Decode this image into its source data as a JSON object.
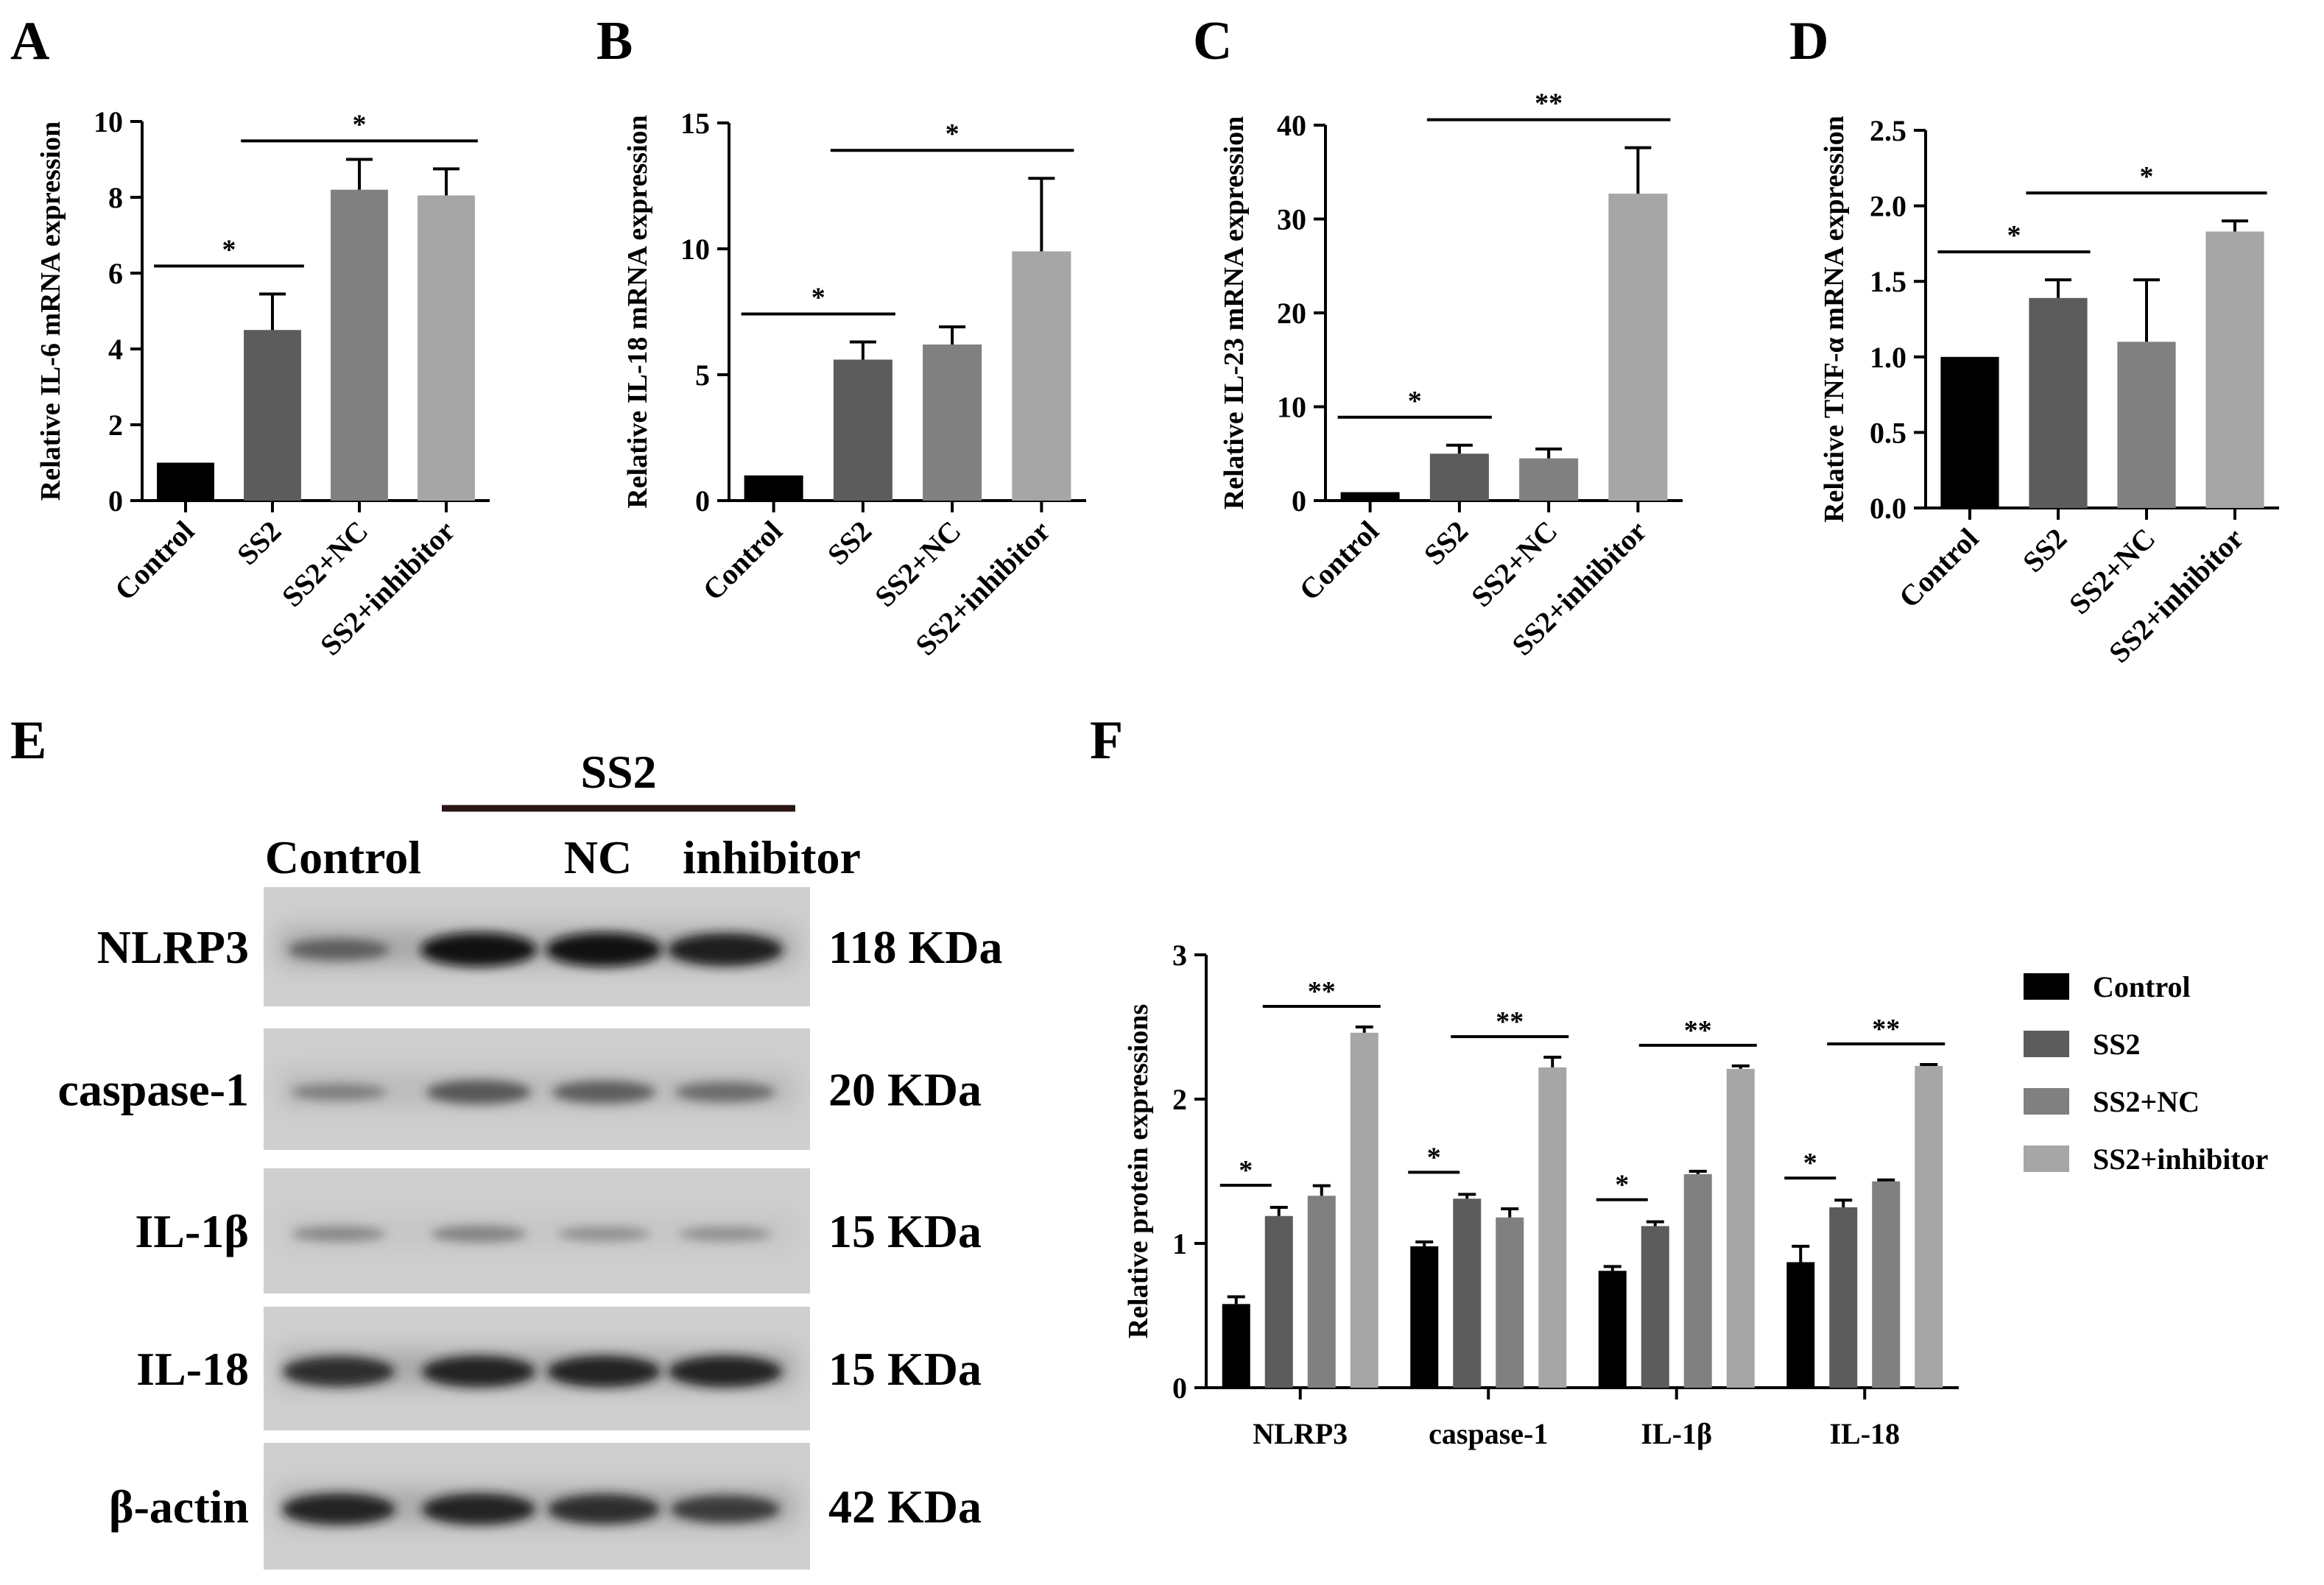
{
  "panel_letters": {
    "A": "A",
    "B": "B",
    "C": "C",
    "D": "D",
    "E": "E",
    "F": "F"
  },
  "colors": {
    "Control": "#000000",
    "SS2": "#5c5c5c",
    "SS2+NC": "#808080",
    "SS2+inhibitor": "#a6a6a6"
  },
  "chart_data": [
    {
      "panel": "A",
      "type": "bar",
      "categories": [
        "Control",
        "SS2",
        "SS2+NC",
        "SS2+inhibitor"
      ],
      "values": [
        1.0,
        4.5,
        8.2,
        8.05
      ],
      "errors": [
        0,
        0.95,
        0.8,
        0.7
      ],
      "ylabel": "Relative IL-6 mRNA expression",
      "ylim": [
        0,
        10
      ],
      "yticks": [
        0,
        2,
        4,
        6,
        8,
        10
      ],
      "significance": [
        {
          "from": 0,
          "to": 1,
          "label": "*"
        },
        {
          "from": 1,
          "to": 3,
          "label": "*"
        }
      ]
    },
    {
      "panel": "B",
      "type": "bar",
      "categories": [
        "Control",
        "SS2",
        "SS2+NC",
        "SS2+inhibitor"
      ],
      "values": [
        1.0,
        5.6,
        6.2,
        9.9
      ],
      "errors": [
        0,
        0.7,
        0.7,
        2.9
      ],
      "ylabel": "Relative IL-18 mRNA expression",
      "ylim": [
        0,
        15
      ],
      "yticks": [
        0,
        5,
        10,
        15
      ],
      "significance": [
        {
          "from": 0,
          "to": 1,
          "label": "*"
        },
        {
          "from": 1,
          "to": 3,
          "label": "*"
        }
      ]
    },
    {
      "panel": "C",
      "type": "bar",
      "categories": [
        "Control",
        "SS2",
        "SS2+NC",
        "SS2+inhibitor"
      ],
      "values": [
        0.9,
        5.0,
        4.5,
        32.7
      ],
      "errors": [
        0,
        0.9,
        1.0,
        4.9
      ],
      "ylabel": "Relative IL-23 mRNA expression",
      "ylim": [
        0,
        40
      ],
      "yticks": [
        0,
        10,
        20,
        30,
        40
      ],
      "significance": [
        {
          "from": 0,
          "to": 1,
          "label": "*"
        },
        {
          "from": 1,
          "to": 3,
          "label": "**"
        }
      ]
    },
    {
      "panel": "D",
      "type": "bar",
      "categories": [
        "Control",
        "SS2",
        "SS2+NC",
        "SS2+inhibitor"
      ],
      "values": [
        1.0,
        1.39,
        1.1,
        1.83
      ],
      "errors": [
        0,
        0.12,
        0.41,
        0.07
      ],
      "ylabel": "Relative TNF-α mRNA expression",
      "ylim": [
        0,
        2.5
      ],
      "yticks": [
        "0.0",
        "0.5",
        "1.0",
        "1.5",
        "2.0",
        "2.5"
      ],
      "significance": [
        {
          "from": 0,
          "to": 1,
          "label": "*"
        },
        {
          "from": 1,
          "to": 3,
          "label": "*"
        }
      ]
    },
    {
      "panel": "F",
      "type": "bar",
      "categories": [
        "NLRP3",
        "caspase-1",
        "IL-1β",
        "IL-18"
      ],
      "series": [
        {
          "name": "Control",
          "values": [
            0.58,
            0.98,
            0.81,
            0.87
          ],
          "errors": [
            0.05,
            0.03,
            0.03,
            0.11
          ]
        },
        {
          "name": "SS2",
          "values": [
            1.19,
            1.31,
            1.12,
            1.25
          ],
          "errors": [
            0.06,
            0.03,
            0.03,
            0.05
          ]
        },
        {
          "name": "SS2+NC",
          "values": [
            1.33,
            1.18,
            1.48,
            1.43
          ],
          "errors": [
            0.07,
            0.06,
            0.02,
            0.01
          ]
        },
        {
          "name": "SS2+inhibitor",
          "values": [
            2.46,
            2.22,
            2.21,
            2.23
          ],
          "errors": [
            0.04,
            0.07,
            0.02,
            0.01
          ]
        }
      ],
      "ylabel": "Relative protein expressions",
      "ylim": [
        0,
        3
      ],
      "yticks": [
        0,
        1,
        2,
        3
      ],
      "legend": "right",
      "significance_labels": [
        [
          "*",
          "**"
        ],
        [
          "*",
          "**"
        ],
        [
          "*",
          "**"
        ],
        [
          "*",
          "**"
        ]
      ]
    }
  ],
  "western_blot": {
    "group_label": "SS2",
    "lane_labels": [
      "Control",
      "NC",
      "inhibitor"
    ],
    "rows": [
      {
        "protein": "NLRP3",
        "size": "118 KDa",
        "band_intensity": [
          0.45,
          0.95,
          0.95,
          0.9
        ]
      },
      {
        "protein": "caspase-1",
        "size": "20 KDa",
        "band_intensity": [
          0.25,
          0.55,
          0.5,
          0.4
        ]
      },
      {
        "protein": "IL-1β",
        "size": "15 KDa",
        "band_intensity": [
          0.2,
          0.25,
          0.15,
          0.15
        ]
      },
      {
        "protein": "IL-18",
        "size": "15 KDa",
        "band_intensity": [
          0.8,
          0.85,
          0.85,
          0.85
        ]
      },
      {
        "protein": "β-actin",
        "size": "42 KDa",
        "band_intensity": [
          0.85,
          0.85,
          0.8,
          0.7
        ]
      }
    ]
  }
}
